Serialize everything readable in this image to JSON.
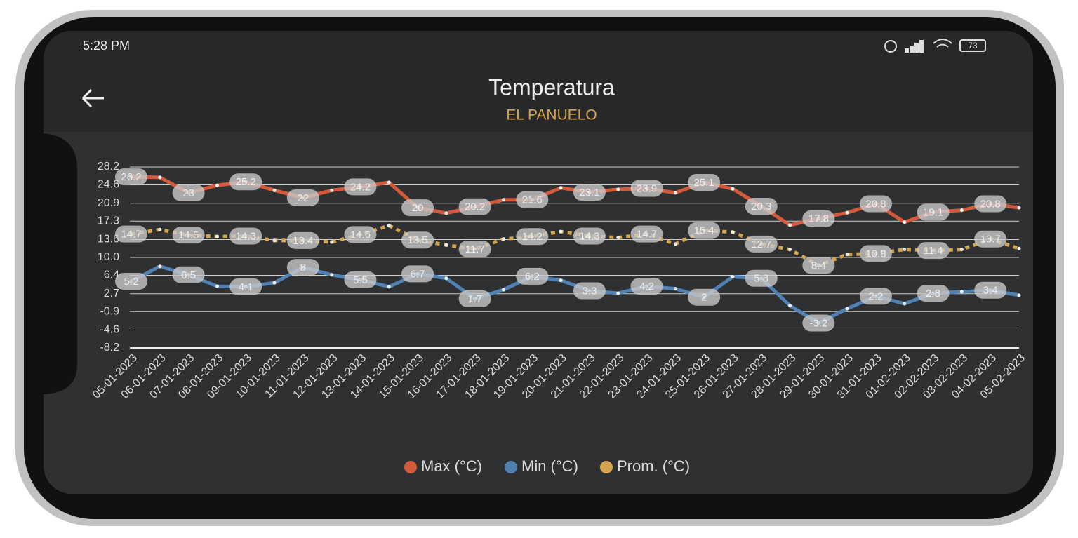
{
  "status_bar": {
    "time": "5:28 PM",
    "battery": "73"
  },
  "header": {
    "title": "Temperatura",
    "subtitle": "EL PANUELO"
  },
  "chart_data": {
    "type": "line",
    "categories": [
      "05-01-2023",
      "06-01-2023",
      "07-01-2023",
      "08-01-2023",
      "09-01-2023",
      "10-01-2023",
      "11-01-2023",
      "12-01-2023",
      "13-01-2023",
      "14-01-2023",
      "15-01-2023",
      "16-01-2023",
      "17-01-2023",
      "18-01-2023",
      "19-01-2023",
      "20-01-2023",
      "21-01-2023",
      "22-01-2023",
      "23-01-2023",
      "24-01-2023",
      "25-01-2023",
      "26-01-2023",
      "27-01-2023",
      "28-01-2023",
      "29-01-2023",
      "30-01-2023",
      "31-01-2023",
      "01-02-2023",
      "02-02-2023",
      "03-02-2023",
      "04-02-2023",
      "05-02-2023"
    ],
    "series": [
      {
        "name": "Max (°C)",
        "color": "#d45a3c",
        "dashed": false,
        "values": [
          26.2,
          26.1,
          23,
          24.5,
          25.2,
          23.5,
          22,
          23.5,
          24.2,
          25.1,
          20,
          18.9,
          20.2,
          21.6,
          21.6,
          24.0,
          23.1,
          23.7,
          23.9,
          23.0,
          25.1,
          23.8,
          20.3,
          16.5,
          17.8,
          19.0,
          20.8,
          17.1,
          19.1,
          19.5,
          20.8,
          20.0
        ]
      },
      {
        "name": "Min (°C)",
        "color": "#4f82b3",
        "dashed": false,
        "values": [
          5.2,
          8.2,
          6.5,
          4.2,
          4.1,
          4.9,
          8,
          6.5,
          5.5,
          4.1,
          6.7,
          5.8,
          1.7,
          3.5,
          6.2,
          5.4,
          3.3,
          2.8,
          4.2,
          3.7,
          2,
          6.1,
          5.8,
          0.3,
          -3.2,
          -0.3,
          2.2,
          0.7,
          2.8,
          3.1,
          3.4,
          2.4
        ]
      },
      {
        "name": "Prom. (°C)",
        "color": "#d4a54c",
        "dashed": true,
        "values": [
          14.7,
          15.6,
          14.5,
          14.2,
          14.3,
          13.4,
          13.4,
          13.1,
          14.6,
          16.4,
          13.5,
          12.5,
          11.7,
          13.7,
          14.2,
          15.2,
          14.3,
          14.0,
          14.7,
          12.7,
          15.4,
          15.1,
          12.7,
          11.6,
          8.4,
          10.6,
          10.8,
          11.6,
          11.4,
          11.6,
          13.7,
          11.8
        ]
      }
    ],
    "ylim": [
      -8.2,
      28.2
    ],
    "yticks": [
      -8.2,
      -4.6,
      -0.9,
      2.7,
      6.4,
      {
        "value": 10,
        "label": "10.0"
      },
      13.6,
      17.3,
      20.9,
      24.6,
      28.2
    ],
    "grid": true
  }
}
